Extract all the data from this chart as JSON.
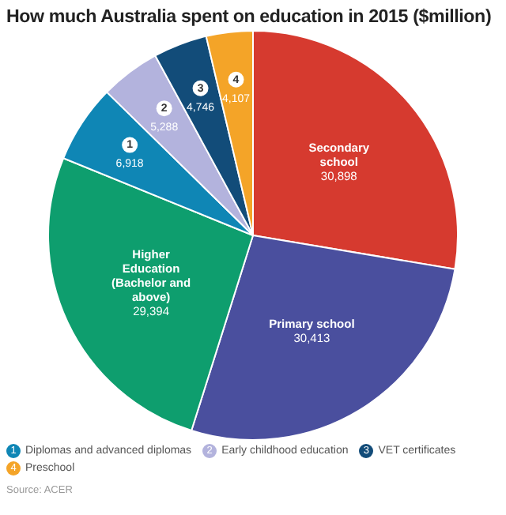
{
  "chart_data": {
    "type": "pie",
    "title": "How much Australia spent on education in 2015 ($million)",
    "categories": [
      "Secondary school",
      "Primary school",
      "Higher Education (Bachelor and above)",
      "Diplomas and advanced diplomas",
      "Early childhood education",
      "VET certificates",
      "Preschool"
    ],
    "values": [
      30898,
      30413,
      29394,
      6918,
      5288,
      4746,
      4107
    ],
    "value_labels": [
      "30,898",
      "30,413",
      "29,394",
      "6,918",
      "5,288",
      "4,746",
      "4,107"
    ],
    "colors": [
      "#d63a2f",
      "#4a4f9e",
      "#0e9e6e",
      "#0f86b5",
      "#b3b3dd",
      "#124c79",
      "#f4a428"
    ],
    "legend": "bottom",
    "annotations": [
      {
        "text": "1",
        "x": "Diplomas and advanced diplomas"
      },
      {
        "text": "2",
        "x": "Early childhood education"
      },
      {
        "text": "3",
        "x": "VET certificates"
      },
      {
        "text": "4",
        "x": "Preschool"
      },
      "Source: ACER"
    ]
  }
}
